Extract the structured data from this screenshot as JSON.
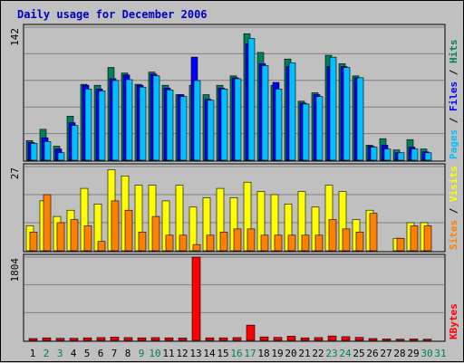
{
  "colors": {
    "hits": "#00805c",
    "files": "#0000ff",
    "pages": "#00c0ff",
    "visits": "#ffff00",
    "sites": "#ff8000",
    "kbytes": "#ff0000",
    "weekend_label": "#00805c",
    "weekday_label": "#000000"
  },
  "chart_data": {
    "type": "bar",
    "title": "Daily usage for December 2006",
    "categories": [
      "1",
      "2",
      "3",
      "4",
      "5",
      "6",
      "7",
      "8",
      "9",
      "10",
      "11",
      "12",
      "13",
      "14",
      "15",
      "16",
      "17",
      "18",
      "19",
      "20",
      "21",
      "22",
      "23",
      "24",
      "25",
      "26",
      "27",
      "28",
      "29",
      "30",
      "31"
    ],
    "weekend_days": [
      "2",
      "3",
      "9",
      "10",
      "16",
      "17",
      "23",
      "24",
      "30",
      "31"
    ],
    "panels": [
      {
        "name": "hits-files-pages",
        "axis_label": "Pages / Files / Hits",
        "ymax_label": "142",
        "ylim": [
          0,
          142
        ],
        "series": [
          {
            "name": "Hits",
            "values": [
              21,
              33,
              15,
              47,
              81,
              80,
              99,
              93,
              81,
              94,
              80,
              70,
              80,
              70,
              80,
              90,
              135,
              115,
              80,
              108,
              63,
              72,
              112,
              103,
              90,
              16,
              23,
              11,
              22,
              12,
              0
            ]
          },
          {
            "name": "Files",
            "values": [
              19,
              24,
              12,
              40,
              80,
              76,
              87,
              91,
              80,
              92,
              77,
              70,
              110,
              65,
              77,
              88,
              124,
              103,
              83,
              100,
              61,
              70,
              100,
              100,
              88,
              15,
              16,
              8,
              14,
              9,
              0
            ]
          },
          {
            "name": "Pages",
            "values": [
              18,
              20,
              8,
              37,
              76,
              74,
              85,
              86,
              78,
              90,
              75,
              68,
              85,
              64,
              76,
              87,
              130,
              101,
              76,
              104,
              60,
              68,
              110,
              99,
              88,
              14,
              12,
              8,
              12,
              8,
              0
            ]
          }
        ]
      },
      {
        "name": "visits-sites",
        "axis_label": "Sites / Visits",
        "ymax_label": "27",
        "ylim": [
          0,
          27
        ],
        "series": [
          {
            "name": "Visits",
            "values": [
              8,
              16,
              11,
              13,
              20,
              15,
              26,
              24,
              21,
              21,
              16,
              21,
              14,
              17,
              20,
              17,
              22,
              19,
              18,
              15,
              19,
              14,
              21,
              19,
              10,
              13,
              0,
              4,
              9,
              9,
              0
            ]
          },
          {
            "name": "Sites",
            "values": [
              6,
              18,
              9,
              10,
              8,
              3,
              16,
              13,
              6,
              11,
              5,
              5,
              2,
              5,
              6,
              7,
              7,
              5,
              5,
              5,
              5,
              5,
              10,
              7,
              6,
              12,
              0,
              4,
              8,
              8,
              0
            ]
          }
        ]
      },
      {
        "name": "kbytes",
        "axis_label": "KBytes",
        "ymax_label": "1804",
        "ylim": [
          0,
          1804
        ],
        "series": [
          {
            "name": "KBytes",
            "values": [
              40,
              55,
              45,
              45,
              55,
              60,
              70,
              60,
              55,
              60,
              55,
              50,
              1804,
              55,
              55,
              60,
              330,
              75,
              65,
              90,
              55,
              60,
              95,
              80,
              65,
              40,
              30,
              25,
              30,
              25,
              0
            ]
          }
        ]
      }
    ]
  }
}
